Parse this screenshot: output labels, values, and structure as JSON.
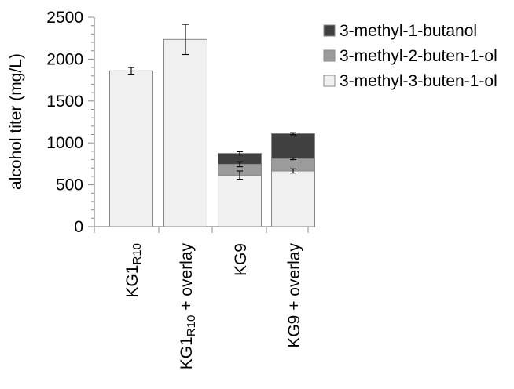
{
  "chart_data": {
    "type": "bar",
    "stacked": true,
    "ylabel": "alcohol titer (mg/L)",
    "ylim": [
      0,
      2500
    ],
    "yticks": [
      0,
      500,
      1000,
      1500,
      2000,
      2500
    ],
    "grid": false,
    "legend_position": "top-right",
    "categories": [
      {
        "base": "KG1",
        "sub": "R10",
        "suffix": ""
      },
      {
        "base": "KG1",
        "sub": "R10",
        "suffix": " + overlay"
      },
      {
        "base": "KG9",
        "sub": "",
        "suffix": ""
      },
      {
        "base": "KG9",
        "sub": "",
        "suffix": " + overlay"
      }
    ],
    "series": [
      {
        "name": "3-methyl-3-buten-1-ol",
        "color": "#f0f0f0",
        "values": [
          1860,
          2235,
          615,
          665
        ],
        "errors": [
          40,
          180,
          50,
          25
        ]
      },
      {
        "name": "3-methyl-2-buten-1-ol",
        "color": "#9b9b9b",
        "values": [
          0,
          0,
          130,
          145
        ],
        "errors": [
          0,
          0,
          30,
          10
        ]
      },
      {
        "name": "3-methyl-1-butanol",
        "color": "#404040",
        "values": [
          0,
          0,
          130,
          300
        ],
        "errors": [
          0,
          0,
          20,
          12
        ]
      }
    ],
    "legend_order": [
      "3-methyl-1-butanol",
      "3-methyl-2-buten-1-ol",
      "3-methyl-3-buten-1-ol"
    ]
  }
}
